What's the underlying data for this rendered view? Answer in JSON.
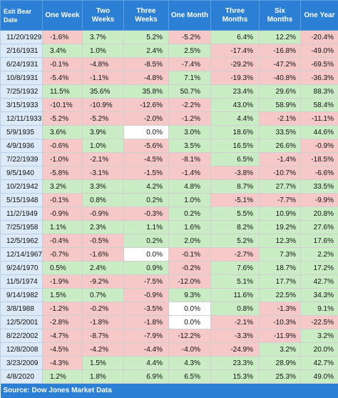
{
  "headers": [
    "Exit Bear Date",
    "One Week",
    "Two Weeks",
    "Three Weeks",
    "One Month",
    "Three Months",
    "Six Months",
    "One Year"
  ],
  "rows": [
    [
      "11/20/1929",
      "-1.6%",
      "3.7%",
      "5.2%",
      "-5.2%",
      "6.4%",
      "12.2%",
      "-20.4%"
    ],
    [
      "2/16/1931",
      "3.4%",
      "1.0%",
      "2.4%",
      "2.5%",
      "-17.4%",
      "-16.8%",
      "-49.0%"
    ],
    [
      "6/24/1931",
      "-0.1%",
      "-4.8%",
      "-8.5%",
      "-7.4%",
      "-29.2%",
      "-47.2%",
      "-69.5%"
    ],
    [
      "10/8/1931",
      "-5.4%",
      "-1.1%",
      "-4.8%",
      "7.1%",
      "-19.3%",
      "-40.8%",
      "-36.3%"
    ],
    [
      "7/25/1932",
      "11.5%",
      "35.6%",
      "35.8%",
      "50.7%",
      "23.4%",
      "29.6%",
      "88.3%"
    ],
    [
      "3/15/1933",
      "-10.1%",
      "-10.9%",
      "-12.6%",
      "-2.2%",
      "43.0%",
      "58.9%",
      "58.4%"
    ],
    [
      "12/11/1933",
      "-5.2%",
      "-5.2%",
      "-2.0%",
      "-1.2%",
      "4.4%",
      "-2.1%",
      "-11.1%"
    ],
    [
      "5/9/1935",
      "3.6%",
      "3.9%",
      "0.0%",
      "3.0%",
      "18.6%",
      "33.5%",
      "44.6%"
    ],
    [
      "4/9/1936",
      "-0.6%",
      "1.0%",
      "-5.6%",
      "3.5%",
      "16.5%",
      "26.6%",
      "-0.9%"
    ],
    [
      "7/22/1939",
      "-1.0%",
      "-2.1%",
      "-4.5%",
      "-8.1%",
      "6.5%",
      "-1.4%",
      "-18.5%"
    ],
    [
      "9/5/1940",
      "-5.8%",
      "-3.1%",
      "-1.5%",
      "-1.4%",
      "-3.8%",
      "-10.7%",
      "-6.6%"
    ],
    [
      "10/2/1942",
      "3.2%",
      "3.3%",
      "4.2%",
      "4.8%",
      "8.7%",
      "27.7%",
      "33.5%"
    ],
    [
      "5/15/1948",
      "-0.1%",
      "0.8%",
      "0.2%",
      "1.0%",
      "-5.1%",
      "-7.7%",
      "-9.9%"
    ],
    [
      "11/2/1949",
      "-0.9%",
      "-0.9%",
      "-0.3%",
      "0.2%",
      "5.5%",
      "10.9%",
      "20.8%"
    ],
    [
      "7/25/1958",
      "1.1%",
      "2.3%",
      "1.1%",
      "1.6%",
      "8.2%",
      "19.2%",
      "27.6%"
    ],
    [
      "12/5/1962",
      "-0.4%",
      "-0.5%",
      "0.2%",
      "2.0%",
      "5.2%",
      "12.3%",
      "17.6%"
    ],
    [
      "12/14/1967",
      "-0.7%",
      "-1.6%",
      "0.0%",
      "-0.1%",
      "-2.7%",
      "7.3%",
      "2.2%"
    ],
    [
      "9/24/1970",
      "0.5%",
      "2.4%",
      "0.9%",
      "-0.2%",
      "7.6%",
      "18.7%",
      "17.2%"
    ],
    [
      "11/5/1974",
      "-1.9%",
      "-9.2%",
      "-7.5%",
      "-12.0%",
      "5.1%",
      "17.7%",
      "42.7%"
    ],
    [
      "9/14/1982",
      "1.5%",
      "0.7%",
      "-0.9%",
      "9.3%",
      "11.6%",
      "22.5%",
      "34.3%"
    ],
    [
      "3/8/1988",
      "-1.2%",
      "-0.2%",
      "-3.5%",
      "0.0%",
      "0.8%",
      "-1.3%",
      "9.1%"
    ],
    [
      "12/5/2001",
      "-2.8%",
      "-1.8%",
      "-1.8%",
      "0.0%",
      "-2.1%",
      "-10.3%",
      "-22.5%"
    ],
    [
      "8/22/2002",
      "-4.7%",
      "-8.7%",
      "-7.9%",
      "-12.2%",
      "-3.3%",
      "-11.9%",
      "3.2%"
    ],
    [
      "12/8/2008",
      "-4.5%",
      "-4.2%",
      "-4.4%",
      "-4.0%",
      "-24.9%",
      "3.2%",
      "20.0%"
    ],
    [
      "3/23/2009",
      "-4.3%",
      "1.5%",
      "4.4%",
      "4.3%",
      "23.3%",
      "28.9%",
      "42.7%"
    ],
    [
      "4/8/2020",
      "1.2%",
      "1.8%",
      "6.9%",
      "6.5%",
      "15.3%",
      "25.3%",
      "49.0%"
    ]
  ],
  "source": "Source: Dow Jones Market Data",
  "colors": {
    "header": "#2b7fd4",
    "date_cell": "#dce9f7",
    "positive": "#c9ecc4",
    "negative": "#f6c8c8",
    "neutral": "#ffffff"
  }
}
